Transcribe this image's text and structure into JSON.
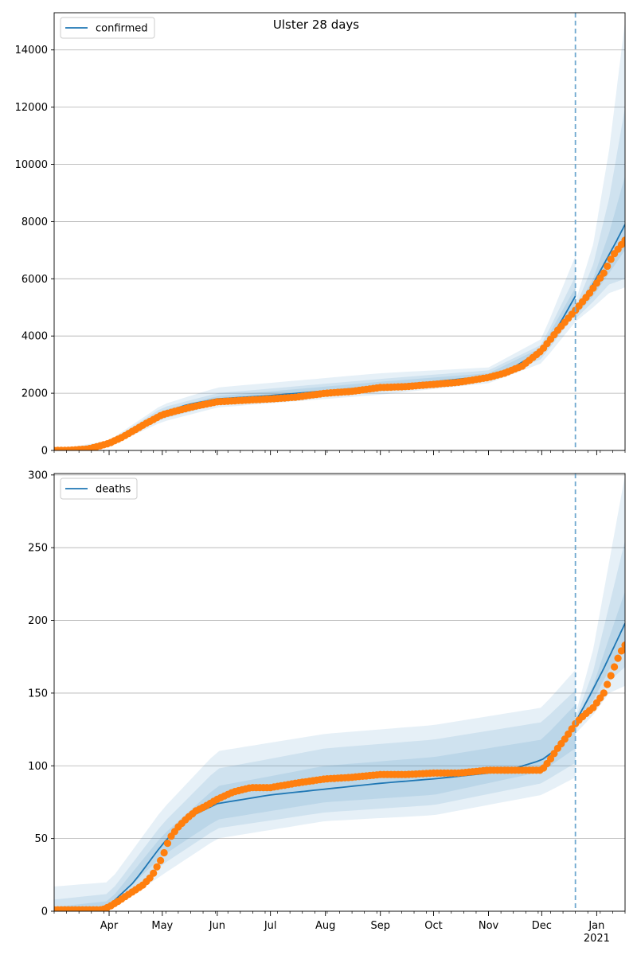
{
  "figure": {
    "title": "Ulster 28 days"
  },
  "colors": {
    "model_line": "#1f77b4",
    "observed_points": "#ff7f0e",
    "band": "#1f77b4",
    "forecast_marker": "#6fa8cf",
    "grid": "#b0b0b0"
  },
  "chart_data": [
    {
      "type": "line",
      "panel": "top",
      "legend": {
        "label": "confirmed",
        "placement": "top-left"
      },
      "ylim": [
        0,
        15300
      ],
      "yticks": [
        0,
        2000,
        4000,
        6000,
        8000,
        10000,
        12000,
        14000
      ],
      "grid": "horizontal",
      "xlim": [
        "2020-03-01",
        "2021-01-17"
      ],
      "xticks": [
        {
          "date": "2020-04-01",
          "label": "Apr"
        },
        {
          "date": "2020-05-01",
          "label": "May"
        },
        {
          "date": "2020-06-01",
          "label": "Jun"
        },
        {
          "date": "2020-07-01",
          "label": "Jul"
        },
        {
          "date": "2020-08-01",
          "label": "Aug"
        },
        {
          "date": "2020-09-01",
          "label": "Sep"
        },
        {
          "date": "2020-10-01",
          "label": "Oct"
        },
        {
          "date": "2020-11-01",
          "label": "Nov"
        },
        {
          "date": "2020-12-01",
          "label": "Dec"
        },
        {
          "date": "2021-01-01",
          "label": "Jan\n2021"
        }
      ],
      "forecast_start": "2020-12-20",
      "model_fit": {
        "x": [
          "2020-03-01",
          "2020-03-20",
          "2020-04-01",
          "2020-04-15",
          "2020-05-01",
          "2020-05-15",
          "2020-06-01",
          "2020-07-01",
          "2020-08-01",
          "2020-09-01",
          "2020-10-01",
          "2020-11-01",
          "2020-11-15",
          "2020-12-01",
          "2020-12-10",
          "2020-12-20"
        ],
        "y": [
          0,
          20,
          250,
          700,
          1300,
          1600,
          1800,
          1920,
          2080,
          2250,
          2400,
          2600,
          2900,
          3500,
          4300,
          5400
        ]
      },
      "model_forecast": {
        "x": [
          "2020-12-20",
          "2020-12-28",
          "2021-01-05",
          "2021-01-12",
          "2021-01-17"
        ],
        "y": [
          4800,
          5600,
          6500,
          7300,
          7900
        ]
      },
      "bands_fit": [
        {
          "x": [
            "2020-03-01",
            "2020-04-01",
            "2020-05-01",
            "2020-06-01",
            "2020-09-01",
            "2020-11-01",
            "2020-12-01",
            "2020-12-20"
          ],
          "lo": [
            0,
            150,
            1000,
            1500,
            1950,
            2350,
            3050,
            4500
          ],
          "hi": [
            10,
            350,
            1600,
            2200,
            2700,
            2900,
            3900,
            6800
          ]
        },
        {
          "x": [
            "2020-03-01",
            "2020-04-01",
            "2020-05-01",
            "2020-06-01",
            "2020-09-01",
            "2020-11-01",
            "2020-12-01",
            "2020-12-20"
          ],
          "lo": [
            0,
            180,
            1100,
            1600,
            2050,
            2450,
            3200,
            4800
          ],
          "hi": [
            5,
            300,
            1500,
            2000,
            2500,
            2800,
            3700,
            6100
          ]
        },
        {
          "x": [
            "2020-03-01",
            "2020-04-01",
            "2020-05-01",
            "2020-06-01",
            "2020-09-01",
            "2020-11-01",
            "2020-12-01",
            "2020-12-20"
          ],
          "lo": [
            0,
            210,
            1200,
            1700,
            2150,
            2520,
            3350,
            5100
          ],
          "hi": [
            2,
            280,
            1400,
            1900,
            2400,
            2700,
            3600,
            5700
          ]
        }
      ],
      "bands_forecast": [
        {
          "x": [
            "2020-12-20",
            "2020-12-30",
            "2021-01-08",
            "2021-01-17"
          ],
          "lo": [
            4500,
            5000,
            5500,
            5700
          ],
          "hi": [
            5200,
            7200,
            10500,
            15000
          ]
        },
        {
          "x": [
            "2020-12-20",
            "2020-12-30",
            "2021-01-08",
            "2021-01-17"
          ],
          "lo": [
            4600,
            5200,
            5800,
            6000
          ],
          "hi": [
            5000,
            6500,
            8800,
            12000
          ]
        },
        {
          "x": [
            "2020-12-20",
            "2020-12-30",
            "2021-01-08",
            "2021-01-17"
          ],
          "lo": [
            4700,
            5400,
            6200,
            7000
          ],
          "hi": [
            4900,
            6000,
            7600,
            9600
          ]
        }
      ],
      "observed": {
        "x": [
          "2020-03-01",
          "2020-03-10",
          "2020-03-20",
          "2020-03-25",
          "2020-04-01",
          "2020-04-08",
          "2020-04-15",
          "2020-04-22",
          "2020-05-01",
          "2020-05-10",
          "2020-05-20",
          "2020-06-01",
          "2020-06-15",
          "2020-07-01",
          "2020-07-15",
          "2020-08-01",
          "2020-08-15",
          "2020-09-01",
          "2020-09-15",
          "2020-10-01",
          "2020-10-15",
          "2020-11-01",
          "2020-11-10",
          "2020-11-20",
          "2020-12-01",
          "2020-12-10",
          "2020-12-20",
          "2020-12-28",
          "2021-01-05",
          "2021-01-10",
          "2021-01-17"
        ],
        "y": [
          0,
          10,
          50,
          130,
          250,
          450,
          700,
          950,
          1250,
          1400,
          1550,
          1700,
          1750,
          1800,
          1860,
          2000,
          2060,
          2200,
          2230,
          2310,
          2380,
          2550,
          2700,
          2950,
          3500,
          4200,
          4900,
          5500,
          6200,
          6800,
          7350
        ]
      }
    },
    {
      "type": "line",
      "panel": "bottom",
      "legend": {
        "label": "deaths",
        "placement": "top-left"
      },
      "ylim": [
        0,
        301
      ],
      "yticks": [
        0,
        50,
        100,
        150,
        200,
        250,
        300
      ],
      "grid": "horizontal",
      "xlim": [
        "2020-03-01",
        "2021-01-17"
      ],
      "xticks": [
        {
          "date": "2020-04-01",
          "label": "Apr"
        },
        {
          "date": "2020-05-01",
          "label": "May"
        },
        {
          "date": "2020-06-01",
          "label": "Jun"
        },
        {
          "date": "2020-07-01",
          "label": "Jul"
        },
        {
          "date": "2020-08-01",
          "label": "Aug"
        },
        {
          "date": "2020-09-01",
          "label": "Sep"
        },
        {
          "date": "2020-10-01",
          "label": "Oct"
        },
        {
          "date": "2020-11-01",
          "label": "Nov"
        },
        {
          "date": "2020-12-01",
          "label": "Dec"
        },
        {
          "date": "2021-01-01",
          "label": "Jan\n2021"
        }
      ],
      "forecast_start": "2020-12-20",
      "model_fit": {
        "x": [
          "2020-03-01",
          "2020-03-25",
          "2020-04-01",
          "2020-04-15",
          "2020-05-01",
          "2020-05-15",
          "2020-06-01",
          "2020-07-01",
          "2020-08-01",
          "2020-09-01",
          "2020-10-01",
          "2020-11-01",
          "2020-11-15",
          "2020-12-01",
          "2020-12-10",
          "2020-12-20"
        ],
        "y": [
          0,
          1,
          4,
          20,
          46,
          64,
          74,
          80,
          84,
          88,
          91,
          95,
          98,
          104,
          112,
          130
        ]
      },
      "model_forecast": {
        "x": [
          "2020-12-20",
          "2020-12-28",
          "2021-01-05",
          "2021-01-12",
          "2021-01-17"
        ],
        "y": [
          130,
          148,
          167,
          185,
          198
        ]
      },
      "bands_fit": [
        {
          "x": [
            "2020-03-01",
            "2020-04-01",
            "2020-05-01",
            "2020-06-01",
            "2020-08-01",
            "2020-10-01",
            "2020-12-01",
            "2020-12-20"
          ],
          "lo": [
            0,
            0,
            25,
            50,
            62,
            66,
            80,
            92
          ],
          "hi": [
            17,
            20,
            70,
            110,
            122,
            128,
            140,
            166
          ]
        },
        {
          "x": [
            "2020-03-01",
            "2020-04-01",
            "2020-05-01",
            "2020-06-01",
            "2020-08-01",
            "2020-10-01",
            "2020-12-01",
            "2020-12-20"
          ],
          "lo": [
            0,
            2,
            32,
            57,
            68,
            73,
            88,
            102
          ],
          "hi": [
            8,
            12,
            60,
            98,
            112,
            118,
            130,
            152
          ]
        },
        {
          "x": [
            "2020-03-01",
            "2020-04-01",
            "2020-05-01",
            "2020-06-01",
            "2020-08-01",
            "2020-10-01",
            "2020-12-01",
            "2020-12-20"
          ],
          "lo": [
            0,
            3,
            38,
            63,
            75,
            80,
            96,
            112
          ],
          "hi": [
            3,
            7,
            52,
            86,
            100,
            106,
            118,
            142
          ]
        }
      ],
      "bands_forecast": [
        {
          "x": [
            "2020-12-20",
            "2020-12-30",
            "2021-01-08",
            "2021-01-17"
          ],
          "lo": [
            122,
            135,
            150,
            155
          ],
          "hi": [
            135,
            180,
            240,
            300
          ]
        },
        {
          "x": [
            "2020-12-20",
            "2020-12-30",
            "2021-01-08",
            "2021-01-17"
          ],
          "lo": [
            125,
            140,
            158,
            168
          ],
          "hi": [
            132,
            165,
            210,
            255
          ]
        },
        {
          "x": [
            "2020-12-20",
            "2020-12-30",
            "2021-01-08",
            "2021-01-17"
          ],
          "lo": [
            127,
            145,
            166,
            180
          ],
          "hi": [
            131,
            155,
            188,
            220
          ]
        }
      ],
      "observed": {
        "x": [
          "2020-03-01",
          "2020-03-20",
          "2020-03-28",
          "2020-04-01",
          "2020-04-05",
          "2020-04-10",
          "2020-04-15",
          "2020-04-20",
          "2020-04-25",
          "2020-05-01",
          "2020-05-05",
          "2020-05-10",
          "2020-05-15",
          "2020-05-20",
          "2020-05-25",
          "2020-06-01",
          "2020-06-10",
          "2020-06-20",
          "2020-07-01",
          "2020-07-15",
          "2020-08-01",
          "2020-08-15",
          "2020-09-01",
          "2020-09-15",
          "2020-10-01",
          "2020-10-15",
          "2020-11-01",
          "2020-11-15",
          "2020-12-01",
          "2020-12-05",
          "2020-12-10",
          "2020-12-15",
          "2020-12-20",
          "2020-12-25",
          "2020-12-30",
          "2021-01-05",
          "2021-01-10",
          "2021-01-14",
          "2021-01-17"
        ],
        "y": [
          1,
          1,
          1,
          3,
          6,
          10,
          14,
          18,
          24,
          37,
          50,
          58,
          64,
          69,
          72,
          77,
          82,
          85,
          85,
          88,
          91,
          92,
          94,
          94,
          95,
          95,
          97,
          97,
          97,
          103,
          112,
          120,
          129,
          135,
          140,
          150,
          165,
          177,
          183
        ]
      }
    }
  ]
}
